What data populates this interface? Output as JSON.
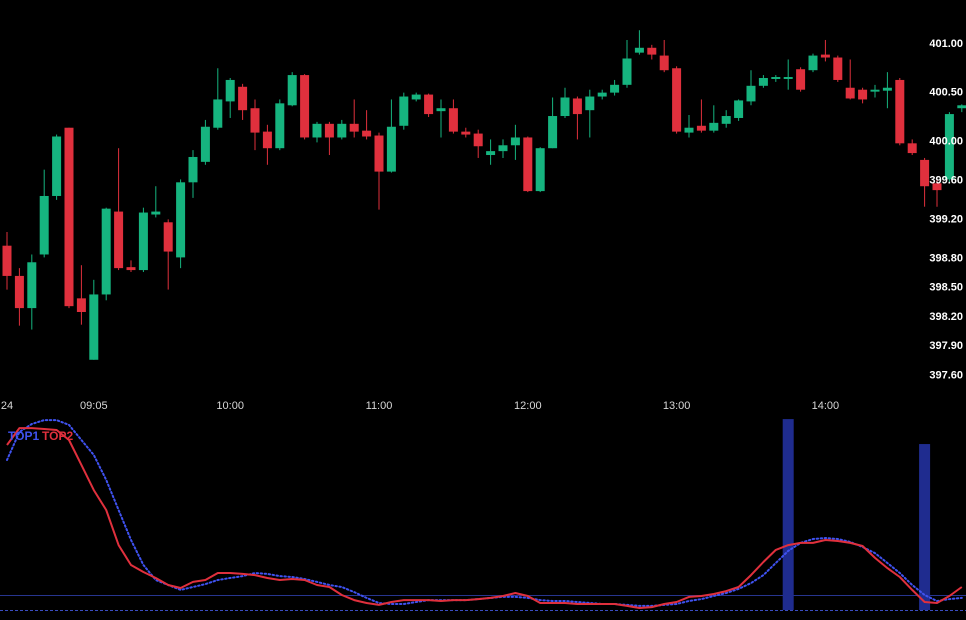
{
  "chart_data": [
    {
      "type": "candlestick",
      "categories": [
        "24",
        null,
        null,
        null,
        null,
        null,
        null,
        "09:05",
        null,
        null,
        null,
        null,
        null,
        null,
        null,
        null,
        null,
        null,
        "10:00",
        null,
        null,
        null,
        null,
        null,
        null,
        null,
        null,
        null,
        null,
        null,
        "11:00",
        null,
        null,
        null,
        null,
        null,
        null,
        null,
        null,
        null,
        null,
        null,
        "12:00",
        null,
        null,
        null,
        null,
        null,
        null,
        null,
        null,
        null,
        null,
        null,
        "13:00",
        null,
        null,
        null,
        null,
        null,
        null,
        null,
        null,
        null,
        null,
        null,
        "14:00",
        null,
        null,
        null,
        null,
        null,
        null,
        null,
        null,
        null,
        null,
        null
      ],
      "ylim": [
        397.45,
        401.45
      ],
      "yticks": [
        {
          "value": 401,
          "label": "401.00"
        },
        {
          "value": 400.5,
          "label": "400.50"
        },
        {
          "value": 400,
          "label": "400.00"
        },
        {
          "value": 399.6,
          "label": "399.60"
        },
        {
          "value": 399.2,
          "label": "399.20"
        },
        {
          "value": 398.8,
          "label": "398.80"
        },
        {
          "value": 398.5,
          "label": "398.50"
        },
        {
          "value": 398.2,
          "label": "398.20"
        },
        {
          "value": 397.9,
          "label": "397.90"
        },
        {
          "value": 397.6,
          "label": "397.60"
        }
      ],
      "up_color": "#16b47f",
      "down_color": "#e0303d",
      "series": [
        {
          "open": [
            398.93,
            398.62,
            398.29,
            398.84,
            399.44,
            400.14,
            398.39,
            397.76,
            398.43,
            399.28,
            398.71,
            398.68,
            399.25,
            399.17,
            398.81,
            399.58,
            399.79,
            400.14,
            400.41,
            400.56,
            400.34,
            400.1,
            399.93,
            400.37,
            400.68,
            400.04,
            400.18,
            400.04,
            400.18,
            400.11,
            400.06,
            399.69,
            400.16,
            400.43,
            400.48,
            400.31,
            400.34,
            400.1,
            400.08,
            399.86,
            399.9,
            399.96,
            400.04,
            399.49,
            399.93,
            400.26,
            400.44,
            400.32,
            400.46,
            400.5,
            400.58,
            400.91,
            400.96,
            400.88,
            400.75,
            400.09,
            400.16,
            400.11,
            400.18,
            400.24,
            400.41,
            400.57,
            400.64,
            400.64,
            400.74,
            400.73,
            400.89,
            400.86,
            400.55,
            400.53,
            400.51,
            400.52,
            400.63,
            399.98,
            399.81,
            399.57,
            399.61,
            400.34
          ],
          "high": [
            399.07,
            398.7,
            398.84,
            399.71,
            400.07,
            400.14,
            398.73,
            398.58,
            399.32,
            399.93,
            398.78,
            399.32,
            399.54,
            399.2,
            399.61,
            399.91,
            400.22,
            400.75,
            400.65,
            400.59,
            400.43,
            400.17,
            400.43,
            400.71,
            400.69,
            400.2,
            400.2,
            400.22,
            400.43,
            400.32,
            400.09,
            400.43,
            400.5,
            400.5,
            400.49,
            400.43,
            400.43,
            400.14,
            400.12,
            400.02,
            400.02,
            400.17,
            400.05,
            399.94,
            400.45,
            400.55,
            400.46,
            400.53,
            400.53,
            400.63,
            401.04,
            401.14,
            400.99,
            401.04,
            400.77,
            400.27,
            400.43,
            400.37,
            400.32,
            400.43,
            400.73,
            400.68,
            400.68,
            400.84,
            400.76,
            400.9,
            401.04,
            400.88,
            400.84,
            400.55,
            400.58,
            400.71,
            400.65,
            400.02,
            399.83,
            399.61,
            400.3,
            400.38
          ],
          "low": [
            398.48,
            398.11,
            398.07,
            398.81,
            399.4,
            398.29,
            398.12,
            397.76,
            398.37,
            398.68,
            398.66,
            398.66,
            399.22,
            398.48,
            398.7,
            399.42,
            399.76,
            400.12,
            400.24,
            400.22,
            399.91,
            399.76,
            399.91,
            400.36,
            400.02,
            399.99,
            399.86,
            400.02,
            400.04,
            400.02,
            399.3,
            399.68,
            400.12,
            400.41,
            400.25,
            400.04,
            400.08,
            400.04,
            399.83,
            399.76,
            399.83,
            399.81,
            399.48,
            399.48,
            399.93,
            400.24,
            400.02,
            400.04,
            400.43,
            400.47,
            400.55,
            400.89,
            400.84,
            400.71,
            400.08,
            400.04,
            400.09,
            400.09,
            400.14,
            400.21,
            400.37,
            400.55,
            400.61,
            400.53,
            400.51,
            400.71,
            400.82,
            400.61,
            400.43,
            400.39,
            400.45,
            400.34,
            399.96,
            399.86,
            399.33,
            399.33,
            399.58,
            400.3
          ],
          "close": [
            398.62,
            398.29,
            398.76,
            399.44,
            400.05,
            398.31,
            398.25,
            398.43,
            399.31,
            398.7,
            398.68,
            399.27,
            399.28,
            398.87,
            399.58,
            399.84,
            400.15,
            400.43,
            400.63,
            400.32,
            400.09,
            399.93,
            400.39,
            400.68,
            400.04,
            400.18,
            400.04,
            400.18,
            400.1,
            400.05,
            399.69,
            400.15,
            400.46,
            400.48,
            400.28,
            400.34,
            400.1,
            400.07,
            399.95,
            399.9,
            399.96,
            400.04,
            399.49,
            399.93,
            400.26,
            400.45,
            400.28,
            400.46,
            400.5,
            400.58,
            400.85,
            400.96,
            400.89,
            400.73,
            400.1,
            400.14,
            400.11,
            400.19,
            400.26,
            400.42,
            400.57,
            400.65,
            400.66,
            400.66,
            400.53,
            400.88,
            400.86,
            400.63,
            400.44,
            400.43,
            400.53,
            400.55,
            399.98,
            399.88,
            399.54,
            399.5,
            400.28,
            400.37
          ]
        }
      ]
    },
    {
      "type": "indicator",
      "ylim": [
        0,
        100
      ],
      "series": [
        {
          "name": "TOP1",
          "kind": "line",
          "style": "dotted",
          "color": "#3f52f0",
          "values": [
            76.9,
            91.3,
            95.4,
            97.4,
            97.4,
            94.9,
            87.2,
            79.5,
            66.7,
            51.3,
            35.9,
            23.1,
            15.4,
            12.8,
            10.3,
            11.8,
            13.3,
            15.4,
            16.4,
            17.4,
            19.0,
            18.5,
            17.4,
            16.9,
            15.9,
            14.4,
            12.8,
            11.8,
            9.2,
            6.2,
            3.6,
            3.1,
            3.1,
            4.1,
            5.1,
            5.1,
            5.1,
            5.1,
            5.6,
            6.2,
            6.7,
            6.7,
            6.2,
            5.1,
            4.6,
            4.6,
            4.1,
            3.6,
            3.1,
            3.1,
            2.6,
            2.1,
            2.1,
            2.6,
            3.1,
            4.6,
            5.6,
            7.2,
            8.7,
            10.8,
            13.8,
            17.9,
            24.1,
            30.3,
            34.4,
            36.4,
            36.9,
            36.4,
            34.9,
            32.3,
            29.2,
            24.1,
            19.0,
            12.8,
            7.7,
            4.6,
            5.6,
            6.2
          ]
        },
        {
          "name": "TOP2",
          "kind": "line",
          "style": "solid",
          "color": "#e0303d",
          "values": [
            84.6,
            93.3,
            93.3,
            92.8,
            92.3,
            87.2,
            74.4,
            61.5,
            51.3,
            33.3,
            23.1,
            19.5,
            16.4,
            12.8,
            11.3,
            14.4,
            15.4,
            19.0,
            19.0,
            18.5,
            17.9,
            16.4,
            15.4,
            15.9,
            15.4,
            12.8,
            11.8,
            7.7,
            5.1,
            3.6,
            2.6,
            4.1,
            5.1,
            5.1,
            5.1,
            4.6,
            5.1,
            5.1,
            5.6,
            6.2,
            7.2,
            8.7,
            7.2,
            3.6,
            3.6,
            3.6,
            3.1,
            3.1,
            3.1,
            3.1,
            2.1,
            1.0,
            1.5,
            3.1,
            4.1,
            6.7,
            7.2,
            8.2,
            9.7,
            11.8,
            17.9,
            24.6,
            30.8,
            33.3,
            34.4,
            34.4,
            35.9,
            35.4,
            34.4,
            32.8,
            26.7,
            21.5,
            16.9,
            10.3,
            4.1,
            3.6,
            7.2,
            11.8
          ]
        },
        {
          "kind": "bar",
          "color": "#1f2c8f",
          "values": [
            null,
            null,
            null,
            null,
            null,
            null,
            null,
            null,
            null,
            null,
            null,
            null,
            null,
            null,
            null,
            null,
            null,
            null,
            null,
            null,
            null,
            null,
            null,
            null,
            null,
            null,
            null,
            null,
            null,
            null,
            null,
            null,
            null,
            null,
            null,
            null,
            null,
            null,
            null,
            null,
            null,
            null,
            null,
            null,
            null,
            null,
            null,
            null,
            null,
            null,
            null,
            null,
            null,
            null,
            null,
            null,
            null,
            null,
            null,
            null,
            null,
            null,
            null,
            97.9,
            null,
            null,
            null,
            null,
            null,
            null,
            null,
            null,
            null,
            null,
            85.1,
            null,
            null,
            null
          ]
        }
      ]
    }
  ]
}
